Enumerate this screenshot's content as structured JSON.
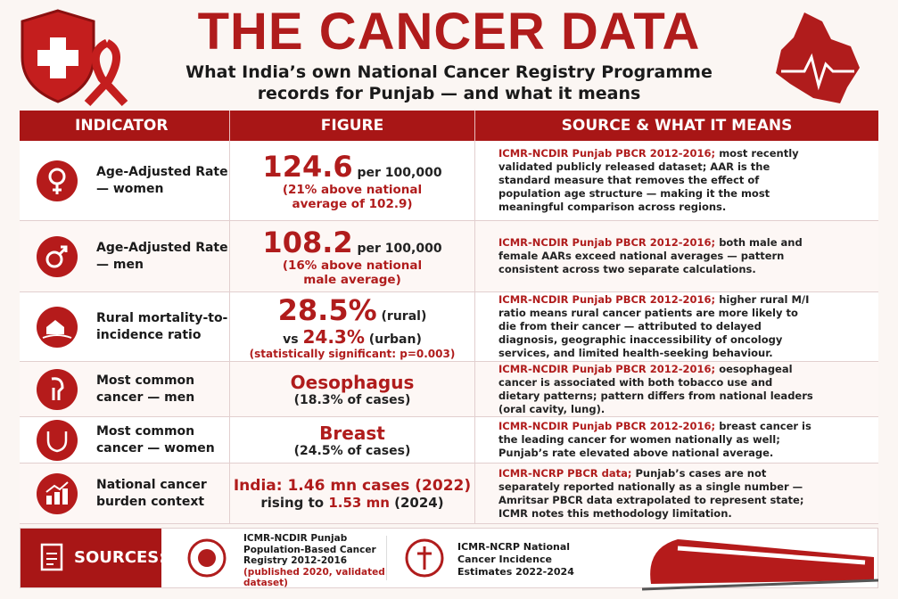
{
  "header": {
    "title": "THE CANCER DATA",
    "subtitle": [
      "What India’s own National Cancer Registry Programme",
      "records for Punjab — and what it means"
    ]
  },
  "table": {
    "columns": [
      "INDICATOR",
      "FIGURE",
      "SOURCE & WHAT IT MEANS"
    ],
    "rows": [
      {
        "indicator": "Age-Adjusted Rate — women",
        "figure": [
          "124.6",
          "per 100,000",
          "(21% above national average of 102.9)"
        ],
        "source": "ICMR-NCDIR Punjab PBCR 2012-2016;",
        "text": "most recently validated publicly released dataset; AAR is the standard measure that removes the effect of population age structure — making it the most meaningful comparison across regions."
      },
      {
        "indicator": "Age-Adjusted Rate — men",
        "figure": [
          "108.2",
          "per 100,000",
          "(16% above national male average)"
        ],
        "source": "ICMR-NCDIR Punjab PBCR 2012-2016;",
        "text": "both male and female AARs exceed national averages — pattern consistent across two separate calculations."
      },
      {
        "indicator": "Rural mortality-to-incidence ratio",
        "figure": [
          "28.5%",
          "(rural)",
          "vs",
          "24.3%",
          "(urban)",
          "(statistically significant: p=0.003)"
        ],
        "source": "ICMR-NCDIR Punjab PBCR 2012-2016;",
        "text": "higher rural M/I ratio means rural cancer patients are more likely to die from their cancer — attributed to delayed diagnosis, geographic inaccessibility of oncology services, and limited health-seeking behaviour."
      },
      {
        "indicator": "Most common cancer — men",
        "figure": [
          "Oesophagus",
          "(18.3% of cases)"
        ],
        "source": "ICMR-NCDIR Punjab PBCR 2012-2016;",
        "text": "oesophageal cancer is associated with both tobacco use and dietary patterns; pattern differs from national leaders (oral cavity, lung)."
      },
      {
        "indicator": "Most common cancer — women",
        "figure": [
          "Breast",
          "(24.5% of cases)"
        ],
        "source": "ICMR-NCDIR Punjab PBCR 2012-2016;",
        "text": "breast cancer is the leading cancer for women nationally as well; Punjab’s rate elevated above national average."
      },
      {
        "indicator": "National cancer burden context",
        "figure": [
          "India: 1.46 mn cases (2022)",
          "rising to",
          "1.53 mn",
          "(2024)"
        ],
        "source": "ICMR-NCRP PBCR data;",
        "text": "Punjab’s cases are not separately reported nationally as a single number — Amritsar PBCR data extrapolated to represent state; ICMR notes this methodology limitation."
      }
    ]
  },
  "sources": {
    "label": "SOURCES:",
    "items": [
      {
        "name": "ICMR-NCDIR Punjab Population-Based Cancer Registry 2012-2016",
        "note": "(published 2020, validated dataset)"
      },
      {
        "name": "ICMR-NCRP National Cancer Incidence Estimates 2022-2024"
      }
    ]
  }
}
